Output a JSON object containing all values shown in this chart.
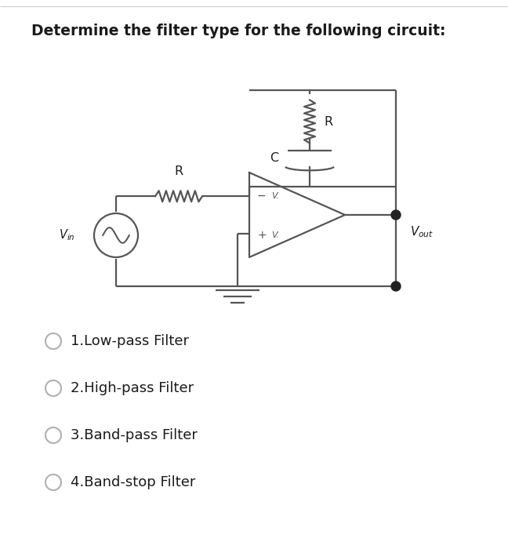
{
  "title": "Determine the filter type for the following circuit:",
  "title_fontsize": 13.5,
  "title_color": "#1a1a1a",
  "bg_color": "#ffffff",
  "circuit_color": "#555555",
  "circuit_lw": 1.6,
  "options": [
    "1.Low-pass Filter",
    "2.High-pass Filter",
    "3.Band-pass Filter",
    "4.Band-stop Filter"
  ],
  "options_fontsize": 13,
  "options_color": "#1a1a1a",
  "radio_color": "#b0b0b0",
  "dot_color": "#222222"
}
